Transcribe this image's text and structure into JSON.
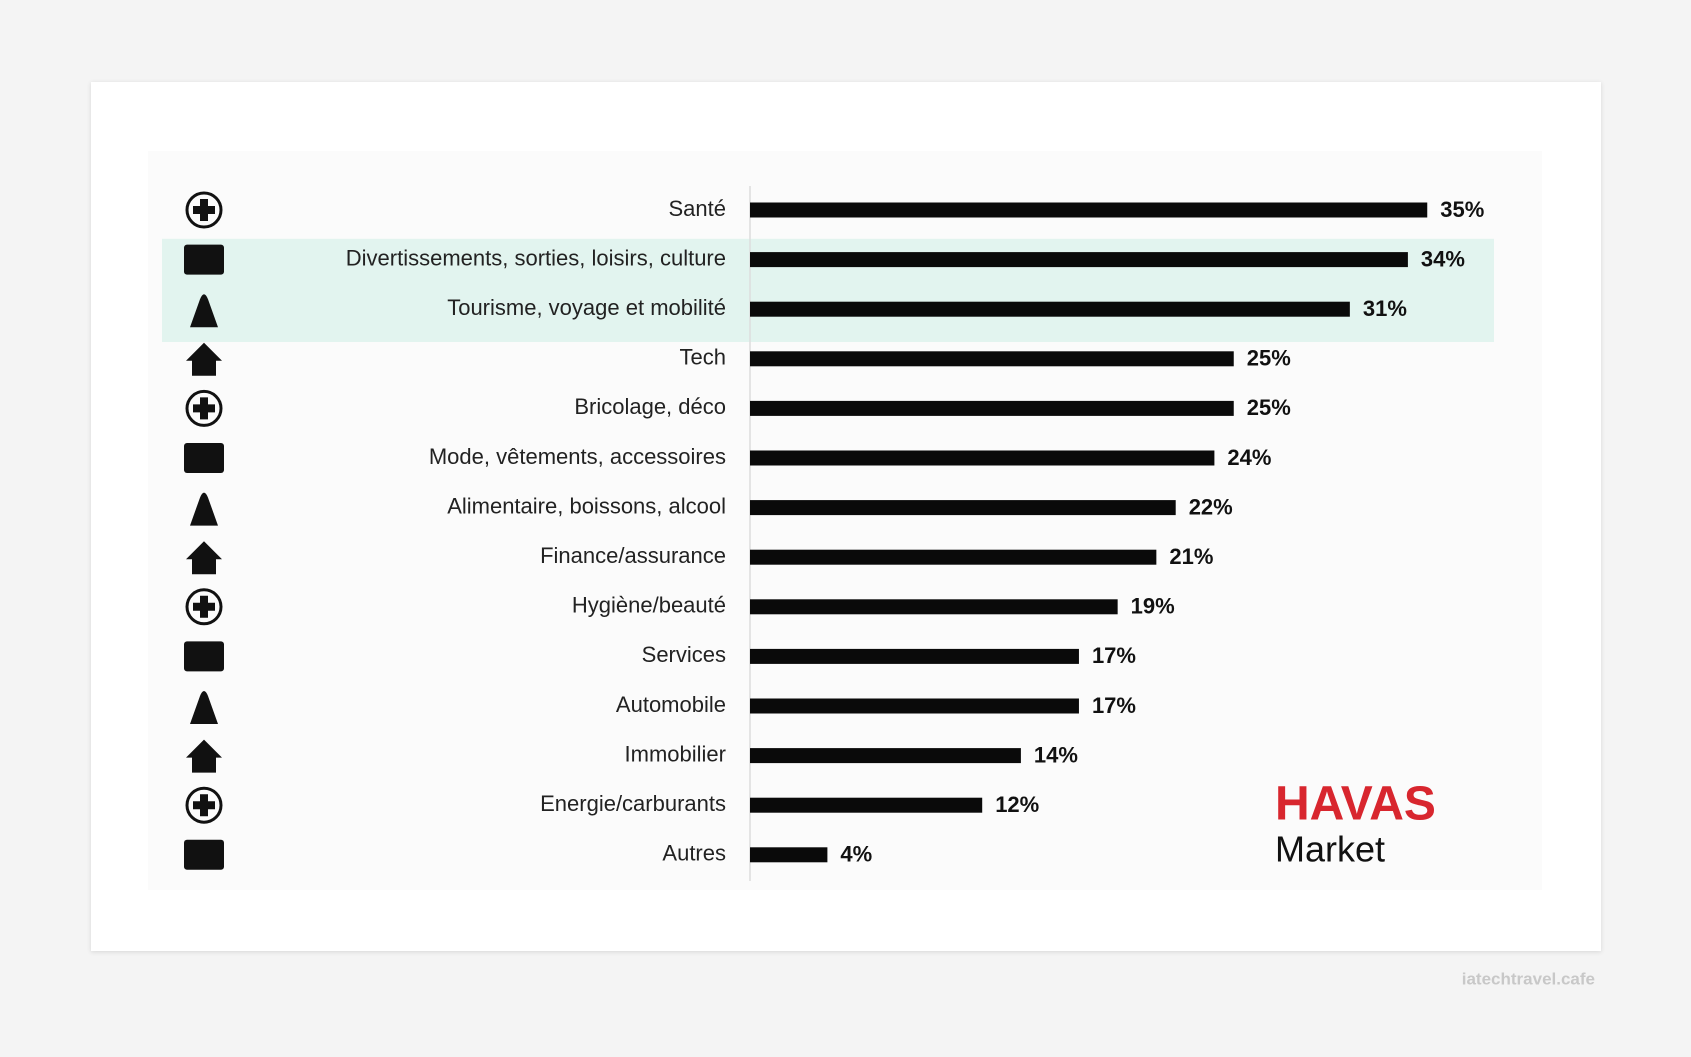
{
  "chart_data": {
    "type": "hbar",
    "categories": [
      "Santé",
      "Divertissements, sorties, loisirs, culture",
      "Tourisme, voyage et mobilité",
      "Tech",
      "Bricolage, déco",
      "Mode, vêtements, accessoires",
      "Alimentaire, boissons, alcool",
      "Finance/assurance",
      "Hygiène/beauté",
      "Services",
      "Automobile",
      "Immobilier",
      "Energie/carburants",
      "Autres"
    ],
    "values": [
      35,
      34,
      31,
      25,
      25,
      24,
      22,
      21,
      19,
      17,
      17,
      14,
      12,
      4
    ],
    "value_labels": [
      "35%",
      "34%",
      "31%",
      "25%",
      "25%",
      "24%",
      "22%",
      "21%",
      "19%",
      "17%",
      "17%",
      "14%",
      "12%",
      "4%"
    ],
    "color": "#0a0a0a",
    "highlight_rows": [
      1,
      2
    ],
    "highlight_color": "#e2f4ef",
    "logo": {
      "name": "HAVAS",
      "sub": "Market",
      "color": "#d8262e"
    },
    "watermark": "iatechtravel.cafe"
  }
}
